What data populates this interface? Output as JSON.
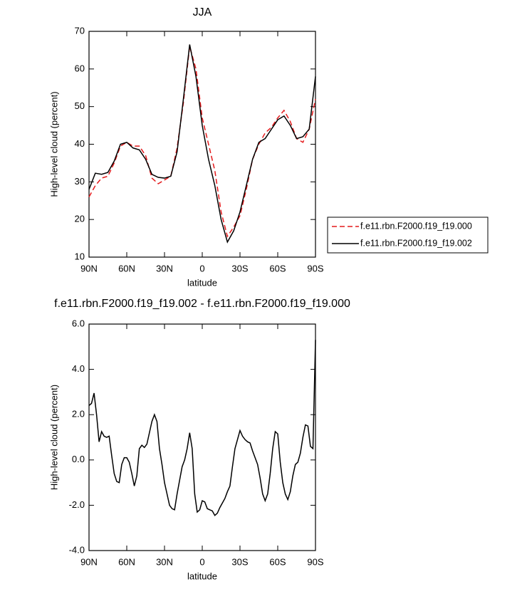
{
  "chart_data": [
    {
      "type": "line",
      "title": "JJA",
      "xlabel": "latitude",
      "ylabel": "High-level cloud (percent)",
      "x": [
        90,
        85,
        80,
        75,
        70,
        65,
        60,
        55,
        50,
        45,
        40,
        35,
        30,
        25,
        20,
        15,
        10,
        5,
        0,
        -5,
        -10,
        -15,
        -20,
        -25,
        -30,
        -35,
        -40,
        -45,
        -50,
        -55,
        -60,
        -65,
        -70,
        -75,
        -80,
        -85,
        -90
      ],
      "series": [
        {
          "name": "f.e11.rbn.F2000.f19_f19.000",
          "color": "#e41a1c",
          "dashed": true,
          "values": [
            26,
            29,
            31,
            31.5,
            35,
            39.5,
            40.5,
            39.5,
            39.5,
            37,
            31,
            29.5,
            30.5,
            31.5,
            39,
            51,
            66,
            60,
            47,
            40,
            33,
            22,
            15.5,
            18,
            21,
            28,
            36,
            40,
            43,
            44.5,
            47,
            49,
            46,
            41.5,
            40.5,
            44,
            52
          ]
        },
        {
          "name": "f.e11.rbn.F2000.f19_f19.002",
          "color": "#000000",
          "dashed": false,
          "values": [
            28,
            32.3,
            32,
            32.5,
            35.5,
            40,
            40.5,
            39,
            38.5,
            36,
            32,
            31.2,
            31,
            31.5,
            38,
            52,
            66.5,
            58,
            45,
            36,
            29,
            20,
            14,
            17,
            22,
            29,
            36,
            40.5,
            41.5,
            44,
            46.5,
            47.5,
            45,
            41.5,
            42,
            44,
            58
          ]
        }
      ],
      "xlim": [
        90,
        -90
      ],
      "xticks": [
        {
          "value": 90,
          "label": "90N"
        },
        {
          "value": 60,
          "label": "60N"
        },
        {
          "value": 30,
          "label": "30N"
        },
        0,
        {
          "value": -30,
          "label": "30S"
        },
        {
          "value": -60,
          "label": "60S"
        },
        {
          "value": -90,
          "label": "90S"
        }
      ],
      "ylim": [
        10,
        70
      ],
      "yticks": [
        10,
        20,
        30,
        40,
        50,
        60,
        70
      ],
      "legend": "outside-right"
    },
    {
      "type": "line",
      "title": "f.e11.rbn.F2000.f19_f19.002 - f.e11.rbn.F2000.f19_f19.000",
      "xlabel": "latitude",
      "ylabel": "High-level cloud (percent)",
      "x": [
        90,
        88,
        86,
        84,
        82,
        80,
        78,
        76,
        74,
        72,
        70,
        68,
        66,
        64,
        62,
        60,
        58,
        56,
        54,
        52,
        50,
        48,
        46,
        44,
        42,
        40,
        38,
        36,
        34,
        32,
        30,
        28,
        26,
        24,
        22,
        20,
        18,
        16,
        14,
        12,
        10,
        8,
        6,
        4,
        2,
        0,
        -2,
        -4,
        -6,
        -8,
        -10,
        -12,
        -14,
        -16,
        -18,
        -20,
        -22,
        -24,
        -26,
        -28,
        -30,
        -32,
        -34,
        -36,
        -38,
        -40,
        -42,
        -44,
        -46,
        -48,
        -50,
        -52,
        -54,
        -56,
        -58,
        -60,
        -62,
        -64,
        -66,
        -68,
        -70,
        -72,
        -74,
        -76,
        -78,
        -80,
        -82,
        -84,
        -86,
        -88,
        -90
      ],
      "color": "#000000",
      "values": [
        2.4,
        2.5,
        2.95,
        2.0,
        0.8,
        1.25,
        1.05,
        1.0,
        1.05,
        0.2,
        -0.6,
        -0.95,
        -1.0,
        -0.2,
        0.1,
        0.1,
        -0.1,
        -0.6,
        -1.15,
        -0.7,
        0.5,
        0.65,
        0.55,
        0.7,
        1.2,
        1.7,
        2.0,
        1.7,
        0.5,
        -0.2,
        -1.0,
        -1.5,
        -2.0,
        -2.15,
        -2.2,
        -1.5,
        -0.9,
        -0.3,
        0.0,
        0.5,
        1.2,
        0.5,
        -1.5,
        -2.3,
        -2.2,
        -1.8,
        -1.85,
        -2.15,
        -2.2,
        -2.25,
        -2.45,
        -2.35,
        -2.1,
        -1.9,
        -1.7,
        -1.4,
        -1.15,
        -0.3,
        0.5,
        0.9,
        1.3,
        1.05,
        0.9,
        0.8,
        0.75,
        0.4,
        0.1,
        -0.2,
        -0.8,
        -1.5,
        -1.8,
        -1.5,
        -0.6,
        0.5,
        1.25,
        1.15,
        -0.1,
        -1.0,
        -1.5,
        -1.75,
        -1.4,
        -0.7,
        -0.2,
        -0.1,
        0.3,
        1.0,
        1.55,
        1.5,
        0.6,
        0.5,
        5.3
      ],
      "xlim": [
        90,
        -90
      ],
      "xticks": [
        {
          "value": 90,
          "label": "90N"
        },
        {
          "value": 60,
          "label": "60N"
        },
        {
          "value": 30,
          "label": "30N"
        },
        0,
        {
          "value": -30,
          "label": "30S"
        },
        {
          "value": -60,
          "label": "60S"
        },
        {
          "value": -90,
          "label": "90S"
        }
      ],
      "ylim": [
        -4,
        6
      ],
      "yticks": [
        {
          "value": -4,
          "label": "-4.0"
        },
        {
          "value": -2,
          "label": "-2.0"
        },
        {
          "value": 0,
          "label": "0.0"
        },
        {
          "value": 2,
          "label": "2.0"
        },
        {
          "value": 4,
          "label": "4.0"
        },
        {
          "value": 6,
          "label": "6.0"
        }
      ]
    }
  ]
}
